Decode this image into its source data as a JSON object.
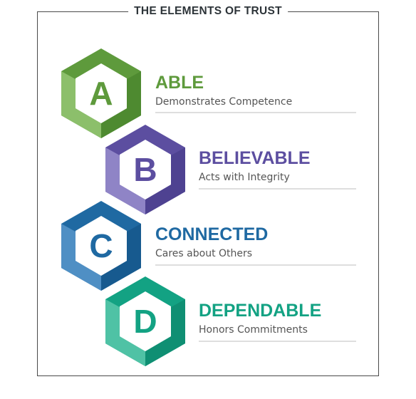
{
  "title": "THE ELEMENTS OF TRUST",
  "elements": [
    {
      "letter": "A",
      "heading": "ABLE",
      "description": "Demonstrates Competence",
      "color": "#5e9a3c",
      "light": "#8cbf6b",
      "dark": "#4e8a30"
    },
    {
      "letter": "B",
      "heading": "BELIEVABLE",
      "description": "Acts with Integrity",
      "color": "#5c4ea0",
      "light": "#8f84c6",
      "dark": "#4e4291"
    },
    {
      "letter": "C",
      "heading": "CONNECTED",
      "description": "Cares about Others",
      "color": "#1f69a2",
      "light": "#4f8fc4",
      "dark": "#175a8f"
    },
    {
      "letter": "D",
      "heading": "DEPENDABLE",
      "description": "Honors Commitments",
      "color": "#13a283",
      "light": "#4fc2a5",
      "dark": "#0f8f73"
    }
  ]
}
